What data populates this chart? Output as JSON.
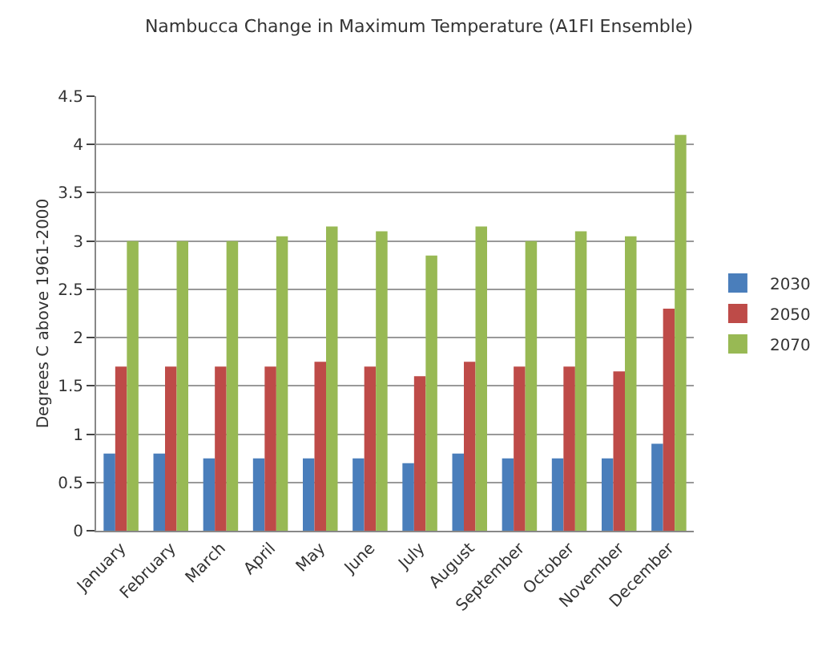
{
  "chart_data": {
    "type": "bar",
    "title": "Nambucca Change in Maximum Temperature (A1FI Ensemble)",
    "ylabel": "Degrees C above 1961-2000",
    "categories": [
      "January",
      "February",
      "March",
      "April",
      "May",
      "June",
      "July",
      "August",
      "September",
      "October",
      "November",
      "December"
    ],
    "series": [
      {
        "name": "2030",
        "color": "#4a7ebb",
        "values": [
          0.8,
          0.8,
          0.75,
          0.75,
          0.75,
          0.75,
          0.7,
          0.8,
          0.75,
          0.75,
          0.75,
          0.9
        ]
      },
      {
        "name": "2050",
        "color": "#be4b48",
        "values": [
          1.7,
          1.7,
          1.7,
          1.7,
          1.75,
          1.7,
          1.6,
          1.75,
          1.7,
          1.7,
          1.65,
          2.3
        ]
      },
      {
        "name": "2070",
        "color": "#98b954",
        "values": [
          3.0,
          3.0,
          3.0,
          3.05,
          3.15,
          3.1,
          2.85,
          3.15,
          3.0,
          3.1,
          3.05,
          4.1
        ]
      }
    ],
    "ylim": [
      0,
      4.5
    ],
    "yticks": [
      0,
      0.5,
      1,
      1.5,
      2,
      2.5,
      3,
      3.5,
      4,
      4.5
    ],
    "grid": "y",
    "legend": "right"
  }
}
